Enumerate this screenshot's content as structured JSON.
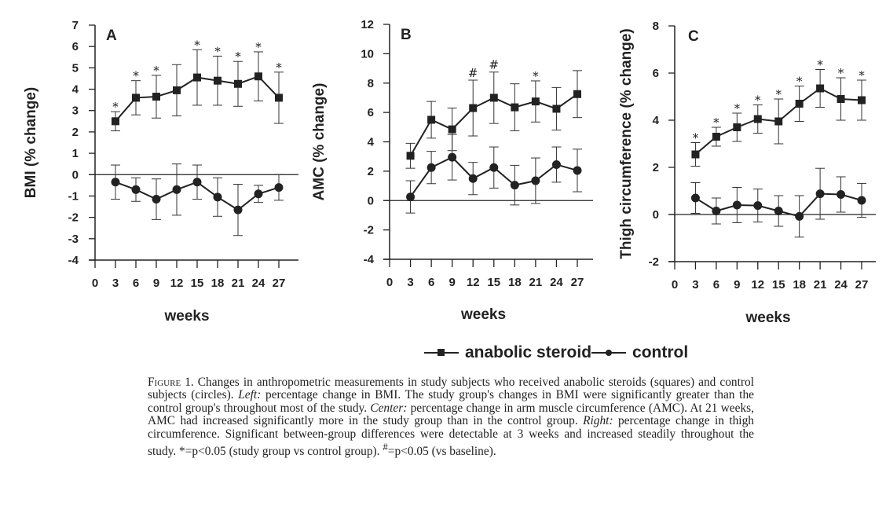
{
  "chart_data": [
    {
      "type": "line",
      "panel": "A",
      "title": "",
      "xlabel": "weeks",
      "ylabel": "BMI (% change)",
      "xlim": [
        0,
        30
      ],
      "ylim": [
        -4,
        7
      ],
      "x_ticks": [
        0,
        3,
        6,
        9,
        12,
        15,
        18,
        21,
        24,
        27
      ],
      "y_ticks": [
        -4,
        -3,
        -2,
        -1,
        0,
        1,
        2,
        3,
        4,
        5,
        6,
        7
      ],
      "x": [
        3,
        6,
        9,
        12,
        15,
        18,
        21,
        24,
        27
      ],
      "series": [
        {
          "name": "anabolic steroid",
          "marker": "square",
          "values": [
            2.5,
            3.6,
            3.65,
            3.95,
            4.55,
            4.4,
            4.25,
            4.6,
            3.6
          ],
          "errors": [
            0.45,
            0.8,
            1.0,
            1.2,
            1.3,
            1.15,
            1.05,
            1.15,
            1.2
          ],
          "annotations": [
            "*",
            "*",
            "*",
            "",
            "*",
            "*",
            "*",
            "*",
            "*"
          ]
        },
        {
          "name": "control",
          "marker": "circle",
          "values": [
            -0.35,
            -0.7,
            -1.15,
            -0.7,
            -0.35,
            -1.05,
            -1.65,
            -0.9,
            -0.6
          ],
          "errors": [
            0.8,
            0.55,
            0.95,
            1.2,
            0.8,
            0.9,
            1.2,
            0.4,
            0.6
          ],
          "annotations": [
            "",
            "",
            "",
            "",
            "",
            "",
            "",
            "",
            ""
          ]
        }
      ]
    },
    {
      "type": "line",
      "panel": "B",
      "title": "",
      "xlabel": "weeks",
      "ylabel": "AMC (% change)",
      "xlim": [
        0,
        30
      ],
      "ylim": [
        -4,
        12
      ],
      "x_ticks": [
        0,
        3,
        6,
        9,
        12,
        15,
        18,
        21,
        24,
        27
      ],
      "y_ticks": [
        -4,
        -2,
        0,
        2,
        4,
        6,
        8,
        10,
        12
      ],
      "x": [
        3,
        6,
        9,
        12,
        15,
        18,
        21,
        24,
        27
      ],
      "series": [
        {
          "name": "anabolic steroid",
          "marker": "square",
          "values": [
            3.05,
            5.5,
            4.85,
            6.3,
            7.0,
            6.35,
            6.75,
            6.25,
            7.25
          ],
          "errors": [
            0.85,
            1.25,
            1.45,
            1.9,
            1.75,
            1.6,
            1.4,
            1.45,
            1.6
          ],
          "annotations": [
            "",
            "",
            "",
            "#",
            "#",
            "",
            "*",
            "",
            ""
          ]
        },
        {
          "name": "control",
          "marker": "circle",
          "values": [
            0.25,
            2.25,
            2.95,
            1.5,
            2.25,
            1.05,
            1.35,
            2.45,
            2.05
          ],
          "errors": [
            1.1,
            1.1,
            1.55,
            1.1,
            1.4,
            1.35,
            1.55,
            1.2,
            1.45
          ],
          "annotations": [
            "",
            "",
            "",
            "",
            "",
            "",
            "",
            "",
            ""
          ]
        }
      ]
    },
    {
      "type": "line",
      "panel": "C",
      "title": "",
      "xlabel": "weeks",
      "ylabel": "Thigh circumference (% change)",
      "xlim": [
        0,
        30
      ],
      "ylim": [
        -2,
        8
      ],
      "x_ticks": [
        0,
        3,
        6,
        9,
        12,
        15,
        18,
        21,
        24,
        27
      ],
      "y_ticks": [
        -2,
        0,
        2,
        4,
        6,
        8
      ],
      "x": [
        3,
        6,
        9,
        12,
        15,
        18,
        21,
        24,
        27
      ],
      "series": [
        {
          "name": "anabolic steroid",
          "marker": "square",
          "values": [
            2.55,
            3.3,
            3.7,
            4.05,
            3.95,
            4.7,
            5.35,
            4.9,
            4.85
          ],
          "errors": [
            0.5,
            0.4,
            0.6,
            0.6,
            0.95,
            0.75,
            0.8,
            0.9,
            0.85
          ],
          "annotations": [
            "*",
            "*",
            "*",
            "*",
            "*",
            "*",
            "*",
            "*",
            "*"
          ]
        },
        {
          "name": "control",
          "marker": "circle",
          "values": [
            0.7,
            0.15,
            0.4,
            0.38,
            0.15,
            -0.08,
            0.88,
            0.85,
            0.6
          ],
          "errors": [
            0.65,
            0.55,
            0.75,
            0.7,
            0.65,
            0.88,
            1.08,
            0.75,
            0.72
          ],
          "annotations": [
            "",
            "",
            "",
            "",
            "",
            "",
            "",
            "",
            ""
          ]
        }
      ]
    }
  ],
  "legend": {
    "placement": "bottom-center",
    "items": [
      {
        "label": "anabolic steroid",
        "marker": "square"
      },
      {
        "label": "control",
        "marker": "circle"
      }
    ]
  },
  "caption": {
    "lead": "Figure 1.",
    "s1": " Changes in anthropometric measurements in study subjects who received anabolic steroids (squares) and control subjects (circles). ",
    "left_label": "Left:",
    "s2": " percentage change in BMI. The study group's changes in BMI were significantly greater than the control group's throughout most of the study. ",
    "center_label": "Center:",
    "s3": " percentage change in arm muscle circumference (AMC). At 21 weeks, AMC had increased significantly more in the study group than in the control group. ",
    "right_label": "Right:",
    "s4": " percentage change in thigh circumference. Significant between-group differences were detectable at 3 weeks and increased steadily throughout the study. *=p<0.05 (study group vs control group). ",
    "hash_sup": "#",
    "s5": "=p<0.05 (vs baseline)."
  }
}
